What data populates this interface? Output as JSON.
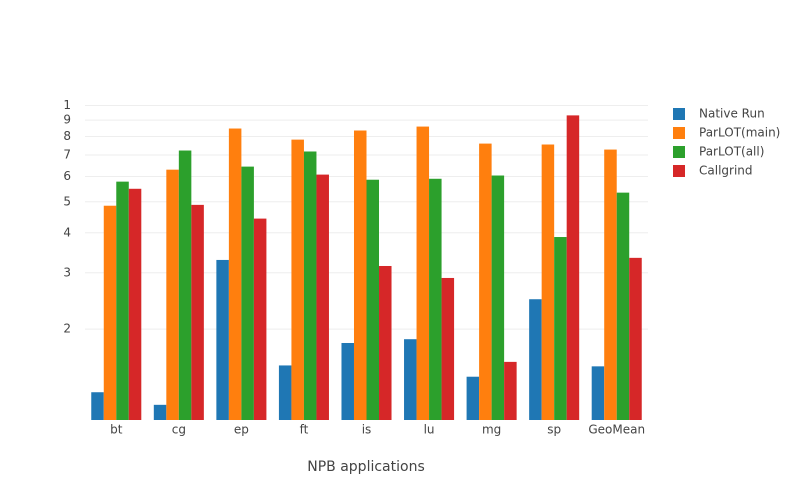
{
  "chart_data": {
    "type": "bar",
    "x_label": "NPB applications",
    "categories": [
      "bt",
      "cg",
      "ep",
      "ft",
      "is",
      "lu",
      "mg",
      "sp",
      "GeoMean"
    ],
    "series": [
      {
        "name": "Native Run",
        "color": "#1f77b4",
        "values": [
          1.27,
          1.16,
          3.29,
          1.54,
          1.81,
          1.86,
          1.42,
          2.48,
          1.53
        ]
      },
      {
        "name": "ParLOT(main)",
        "color": "#ff7f0e",
        "values": [
          4.86,
          6.3,
          8.47,
          7.82,
          8.35,
          8.59,
          7.6,
          7.55,
          7.28
        ]
      },
      {
        "name": "ParLOT(all)",
        "color": "#2ca02c",
        "values": [
          5.78,
          7.23,
          6.44,
          7.18,
          5.86,
          5.9,
          6.04,
          3.88,
          5.34
        ]
      },
      {
        "name": "Callgrind",
        "color": "#d62728",
        "values": [
          5.49,
          4.89,
          4.43,
          6.08,
          3.15,
          2.89,
          1.58,
          9.31,
          3.34
        ]
      }
    ],
    "ylim": [
      1.04,
      10.4
    ],
    "log_y": true,
    "yticks": [
      2,
      3,
      4,
      5,
      6,
      7,
      8,
      9,
      {
        "value": 10,
        "label": "1"
      }
    ],
    "grid": true,
    "legend": "right"
  }
}
